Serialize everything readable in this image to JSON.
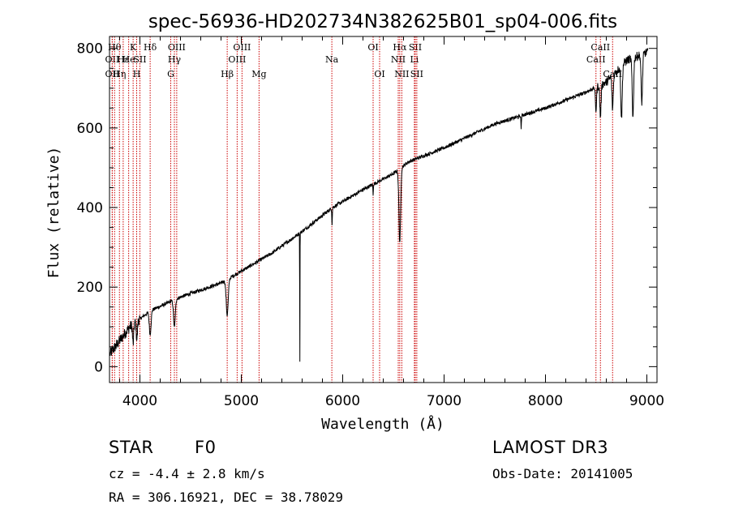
{
  "chart_data": {
    "type": "line",
    "title": "spec-56936-HD202734N382625B01_sp04-006.fits",
    "xlabel": "Wavelength (Å)",
    "ylabel": "Flux (relative)",
    "xlim": [
      3700,
      9100
    ],
    "ylim": [
      -40,
      830
    ],
    "x_ticks": [
      4000,
      5000,
      6000,
      7000,
      8000,
      9000
    ],
    "y_ticks": [
      0,
      200,
      400,
      600,
      800
    ],
    "continuum": [
      [
        3700,
        30
      ],
      [
        3900,
        100
      ],
      [
        4100,
        140
      ],
      [
        4400,
        175
      ],
      [
        4800,
        210
      ],
      [
        5000,
        240
      ],
      [
        5300,
        285
      ],
      [
        5600,
        340
      ],
      [
        5900,
        400
      ],
      [
        6200,
        445
      ],
      [
        6500,
        485
      ],
      [
        6650,
        515
      ],
      [
        7000,
        550
      ],
      [
        7500,
        610
      ],
      [
        8000,
        650
      ],
      [
        8400,
        690
      ],
      [
        8600,
        715
      ],
      [
        8800,
        770
      ],
      [
        9000,
        790
      ]
    ],
    "absorption_features": [
      {
        "x": 3933,
        "depth": 50,
        "width": 8
      },
      {
        "x": 3970,
        "depth": 45,
        "width": 8
      },
      {
        "x": 4101,
        "depth": 60,
        "width": 12
      },
      {
        "x": 4340,
        "depth": 70,
        "width": 12
      },
      {
        "x": 4861,
        "depth": 90,
        "width": 14
      },
      {
        "x": 5577,
        "depth": 340,
        "width": 2
      },
      {
        "x": 5895,
        "depth": 40,
        "width": 4
      },
      {
        "x": 6300,
        "depth": 30,
        "width": 3
      },
      {
        "x": 6563,
        "depth": 185,
        "width": 12
      },
      {
        "x": 7760,
        "depth": 30,
        "width": 4
      },
      {
        "x": 8498,
        "depth": 60,
        "width": 8
      },
      {
        "x": 8542,
        "depth": 80,
        "width": 9
      },
      {
        "x": 8662,
        "depth": 85,
        "width": 9
      },
      {
        "x": 8750,
        "depth": 130,
        "width": 10
      },
      {
        "x": 8862,
        "depth": 150,
        "width": 10
      },
      {
        "x": 8950,
        "depth": 120,
        "width": 10
      }
    ],
    "line_markers": [
      {
        "x": 3727,
        "label": "OII",
        "row": 2
      },
      {
        "x": 3750,
        "label": "Hθ",
        "row": 1
      },
      {
        "x": 3727,
        "label": "OII",
        "row": 3
      },
      {
        "x": 3798,
        "label": "Hη",
        "row": 3
      },
      {
        "x": 3835,
        "label": "Hε",
        "row": 2
      },
      {
        "x": 3889,
        "label": "He",
        "row": 2
      },
      {
        "x": 3933,
        "label": "K",
        "row": 1
      },
      {
        "x": 3968,
        "label": "H",
        "row": 3
      },
      {
        "x": 4000,
        "label": "SII",
        "row": 2
      },
      {
        "x": 4101,
        "label": "Hδ",
        "row": 1
      },
      {
        "x": 4304,
        "label": "G",
        "row": 3
      },
      {
        "x": 4340,
        "label": "Hγ",
        "row": 2
      },
      {
        "x": 4363,
        "label": "OIII",
        "row": 1
      },
      {
        "x": 4861,
        "label": "Hβ",
        "row": 3
      },
      {
        "x": 4959,
        "label": "OIII",
        "row": 2
      },
      {
        "x": 5007,
        "label": "OIII",
        "row": 1
      },
      {
        "x": 5175,
        "label": "Mg",
        "row": 3
      },
      {
        "x": 5893,
        "label": "Na",
        "row": 2
      },
      {
        "x": 6300,
        "label": "OI",
        "row": 1
      },
      {
        "x": 6364,
        "label": "OI",
        "row": 3
      },
      {
        "x": 6548,
        "label": "NII",
        "row": 2
      },
      {
        "x": 6563,
        "label": "Hα",
        "row": 1
      },
      {
        "x": 6583,
        "label": "NII",
        "row": 3
      },
      {
        "x": 6707,
        "label": "Li",
        "row": 2
      },
      {
        "x": 6716,
        "label": "SII",
        "row": 1
      },
      {
        "x": 6731,
        "label": "SII",
        "row": 3
      },
      {
        "x": 8498,
        "label": "CaII",
        "row": 2
      },
      {
        "x": 8542,
        "label": "CaII",
        "row": 1
      },
      {
        "x": 8662,
        "label": "CaII",
        "row": 3
      }
    ]
  },
  "info": {
    "class": "STAR",
    "subclass": "F0",
    "survey": "LAMOST DR3",
    "cz": "cz = -4.4 ± 2.8 km/s",
    "obs_date": "Obs-Date: 20141005",
    "coords": "RA = 306.16921, DEC =  38.78029"
  },
  "colors": {
    "axes": "#000000",
    "spectrum": "#000000",
    "marker": "#cc0000"
  }
}
